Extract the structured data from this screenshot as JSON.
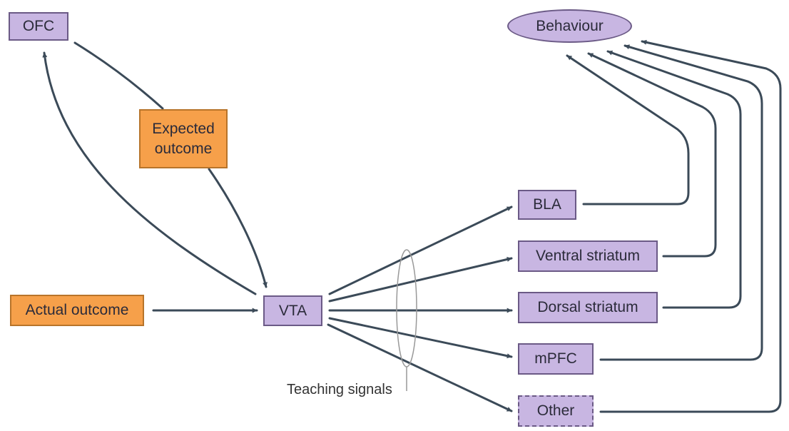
{
  "nodes": {
    "ofc": "OFC",
    "behaviour": "Behaviour",
    "expected_outcome_line1": "Expected",
    "expected_outcome_line2": "outcome",
    "actual_outcome": "Actual outcome",
    "vta": "VTA",
    "bla": "BLA",
    "ventral_striatum": "Ventral striatum",
    "dorsal_striatum": "Dorsal striatum",
    "mpfc": "mPFC",
    "other": "Other"
  },
  "labels": {
    "teaching_signals": "Teaching signals"
  },
  "colors": {
    "region_fill": "#c8b6e2",
    "region_border": "#6b5a86",
    "outcome_fill": "#f6a04a",
    "outcome_border": "#b8742a",
    "arrow": "#3b4a58"
  }
}
